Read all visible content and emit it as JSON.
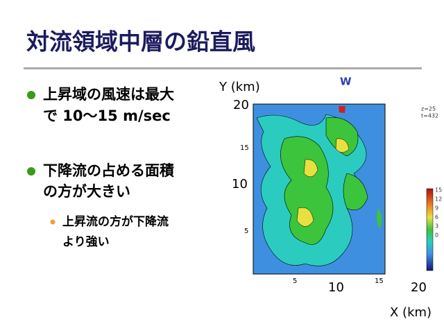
{
  "title": "対流領域中層の鉛直風",
  "bullets": [
    {
      "lines": [
        "上昇域の風速は最大",
        "で 10〜15 m/sec"
      ]
    },
    {
      "lines": [
        "下降流の占める面積",
        "の方が大きい"
      ],
      "sub": [
        {
          "lines": [
            "上昇流の方が下降流",
            "より強い"
          ]
        }
      ]
    }
  ],
  "figure": {
    "title": "W",
    "y_label": "Y (km)",
    "x_label": "X (km)",
    "y_ticks": [
      "20",
      "15",
      "10",
      "5"
    ],
    "x_ticks": [
      "5",
      "10",
      "15",
      "20"
    ],
    "info": [
      "z=25",
      "t=432"
    ],
    "colorbar_ticks": [
      "15",
      "12",
      "9",
      "6",
      "3",
      "0"
    ]
  }
}
